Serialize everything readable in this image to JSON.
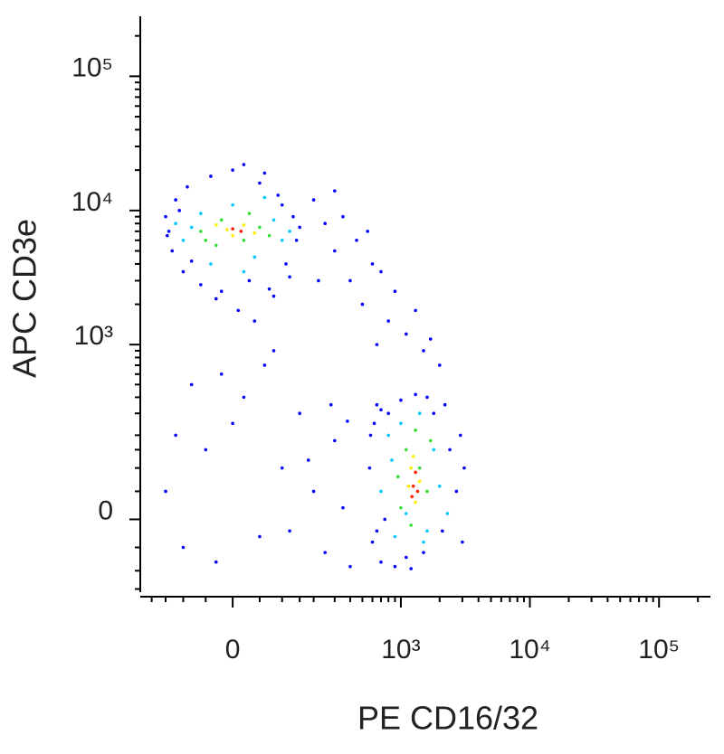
{
  "chart_data": {
    "type": "scatter",
    "x_label": "PE CD16/32",
    "y_label": "APC CD3e",
    "xscale": "biexponential",
    "yscale": "biexponential",
    "xlim": [
      -250,
      250000
    ],
    "ylim": [
      -160,
      280000
    ],
    "xticks": [
      0,
      {
        "value": 1000,
        "label": "10³"
      },
      {
        "value": 10000,
        "label": "10⁴"
      },
      {
        "value": 100000,
        "label": "10⁵"
      }
    ],
    "yticks": [
      0,
      {
        "value": 1000,
        "label": "10³"
      },
      {
        "value": 10000,
        "label": "10⁴"
      },
      {
        "value": 100000,
        "label": "10⁵"
      }
    ],
    "xminorticks": [
      -200,
      -150,
      -100,
      -50,
      50,
      100,
      150,
      200,
      300,
      400,
      500,
      600,
      700,
      800,
      900,
      2000,
      3000,
      4000,
      5000,
      6000,
      7000,
      8000,
      9000,
      20000,
      30000,
      40000,
      50000,
      60000,
      70000,
      80000,
      90000,
      200000
    ],
    "yminorticks": [
      -150,
      -100,
      -50,
      50,
      100,
      150,
      200,
      300,
      400,
      500,
      600,
      700,
      800,
      900,
      2000,
      3000,
      4000,
      5000,
      6000,
      7000,
      8000,
      9000,
      20000,
      30000,
      40000,
      50000,
      60000,
      70000,
      80000,
      90000,
      200000
    ],
    "series": [
      {
        "color": "#0000ff",
        "x": [
          -150,
          -130,
          -120,
          -100,
          -90,
          -140,
          -60,
          -40,
          -20,
          0,
          30,
          50,
          70,
          90,
          110,
          130,
          140,
          120,
          100,
          -80,
          -110,
          20,
          -30,
          60,
          150,
          -145,
          80,
          10,
          40,
          200,
          250,
          300,
          350,
          400,
          450,
          500,
          600,
          700,
          800,
          900,
          1100,
          1300,
          1500,
          300,
          220,
          1700,
          2000,
          550,
          650,
          -150,
          -100,
          -50,
          0,
          50,
          100,
          150,
          -120,
          -30,
          200,
          250,
          300,
          350,
          400,
          20,
          -80,
          60,
          120,
          180,
          280,
          -20,
          80,
          380,
          570,
          600,
          620,
          650,
          700,
          750,
          800,
          900,
          1000,
          1100,
          1300,
          1500,
          1800,
          2100,
          2400,
          2700,
          3000,
          2900,
          2200,
          650,
          1600,
          1200,
          3100,
          580,
          700
        ],
        "values": [
          9000,
          5000,
          12000,
          3500,
          15000,
          7000,
          2800,
          18000,
          2500,
          20000,
          3000,
          16000,
          2600,
          13000,
          4000,
          9000,
          6000,
          3200,
          11000,
          4200,
          10000,
          22000,
          2200,
          19000,
          7500,
          6500,
          2300,
          1800,
          1500,
          12000,
          8000,
          5000,
          9000,
          3000,
          6000,
          2000,
          4000,
          3500,
          1500,
          2500,
          1200,
          1800,
          900,
          14000,
          3000,
          1100,
          700,
          7000,
          1000,
          50,
          -50,
          150,
          250,
          -30,
          100,
          300,
          200,
          -80,
          50,
          -60,
          180,
          20,
          -90,
          400,
          500,
          700,
          -20,
          120,
          350,
          600,
          900,
          260,
          100,
          -40,
          250,
          350,
          -80,
          0,
          300,
          -90,
          380,
          -70,
          420,
          -60,
          300,
          -20,
          150,
          50,
          -40,
          200,
          350,
          -20,
          400,
          -95,
          100,
          200,
          320
        ]
      },
      {
        "color": "#00c8ff",
        "x": [
          -100,
          -60,
          -40,
          0,
          40,
          80,
          100,
          -80,
          20,
          60,
          -120,
          120,
          700,
          800,
          900,
          1000,
          1100,
          1400,
          1600,
          1800,
          2000,
          2300,
          850,
          1500
        ],
        "values": [
          6000,
          9500,
          4000,
          11000,
          4500,
          8500,
          6000,
          7500,
          3500,
          12500,
          8000,
          7000,
          50,
          200,
          -30,
          250,
          10,
          300,
          -20,
          150,
          60,
          10,
          120,
          -40
        ]
      },
      {
        "color": "#33dd33",
        "x": [
          -60,
          -20,
          20,
          50,
          -30,
          30,
          70,
          -50,
          950,
          1100,
          1200,
          1400,
          1600,
          1700,
          1000,
          1300
        ],
        "values": [
          7000,
          8500,
          6000,
          7500,
          5500,
          9500,
          6500,
          6000,
          80,
          150,
          -10,
          100,
          50,
          180,
          20,
          220
        ]
      },
      {
        "color": "#ffee00",
        "x": [
          -10,
          20,
          0,
          -30,
          40,
          1150,
          1300,
          1250,
          1400,
          1200
        ],
        "values": [
          7200,
          7800,
          6500,
          7800,
          6800,
          60,
          30,
          130,
          70,
          100
        ]
      },
      {
        "color": "#ff2000",
        "x": [
          0,
          15,
          1250,
          1300,
          1220,
          1350
        ],
        "values": [
          7300,
          7000,
          60,
          90,
          40,
          50
        ]
      }
    ]
  }
}
